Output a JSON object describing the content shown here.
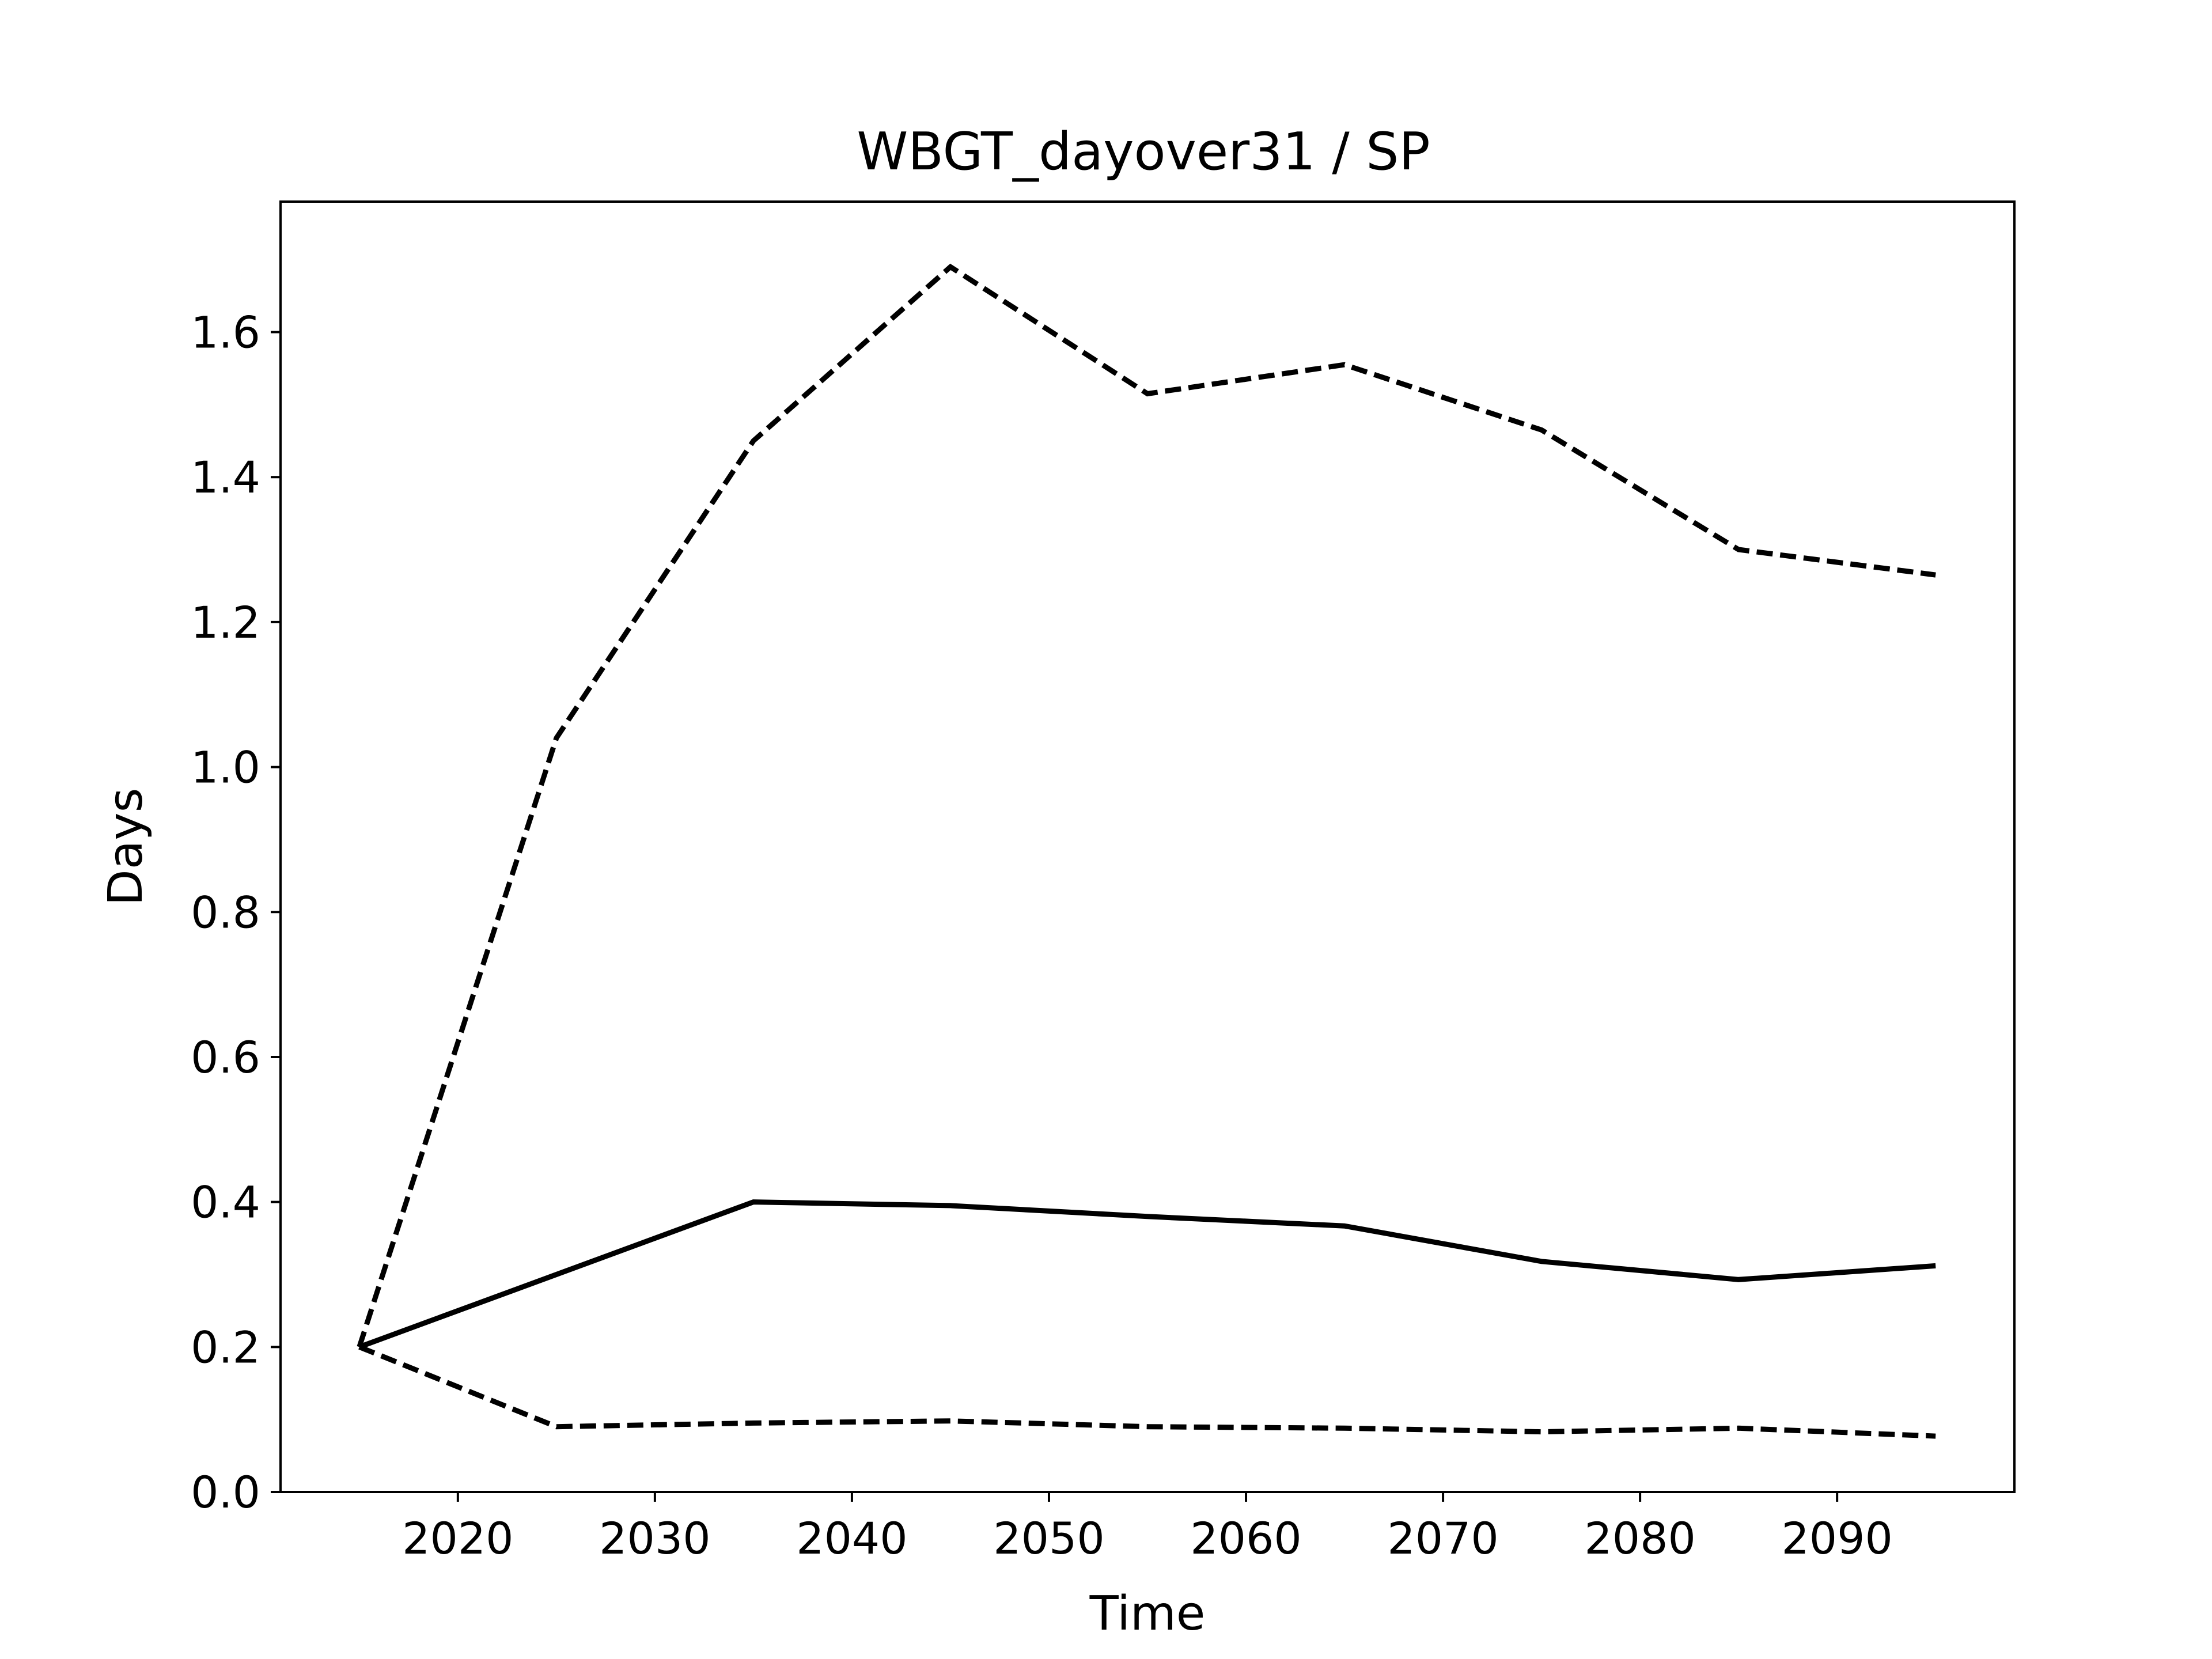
{
  "chart_data": {
    "type": "line",
    "title": "WBGT_dayover31 / SP",
    "xlabel": "Time",
    "ylabel": "Days",
    "xlim": [
      2011,
      2099
    ],
    "ylim": [
      0.0,
      1.78
    ],
    "xticks": [
      2020,
      2030,
      2040,
      2050,
      2060,
      2070,
      2080,
      2090
    ],
    "yticks": [
      0.0,
      0.2,
      0.4,
      0.6,
      0.8,
      1.0,
      1.2,
      1.4,
      1.6
    ],
    "ytick_labels": [
      "0.0",
      "0.2",
      "0.4",
      "0.6",
      "0.8",
      "1.0",
      "1.2",
      "1.4",
      "1.6"
    ],
    "grid": false,
    "legend": "none",
    "x": [
      2015,
      2025,
      2035,
      2045,
      2055,
      2065,
      2075,
      2085,
      2095
    ],
    "series": [
      {
        "style": "dashed",
        "color": "#000000",
        "values": [
          0.2,
          1.04,
          1.45,
          1.69,
          1.515,
          1.555,
          1.465,
          1.3,
          1.265
        ]
      },
      {
        "style": "solid",
        "color": "#000000",
        "values": [
          0.2,
          0.3,
          0.4,
          0.395,
          0.38,
          0.367,
          0.318,
          0.293,
          0.312
        ]
      },
      {
        "style": "dashed",
        "color": "#000000",
        "values": [
          0.2,
          0.09,
          0.095,
          0.098,
          0.09,
          0.088,
          0.083,
          0.088,
          0.077
        ]
      }
    ]
  }
}
